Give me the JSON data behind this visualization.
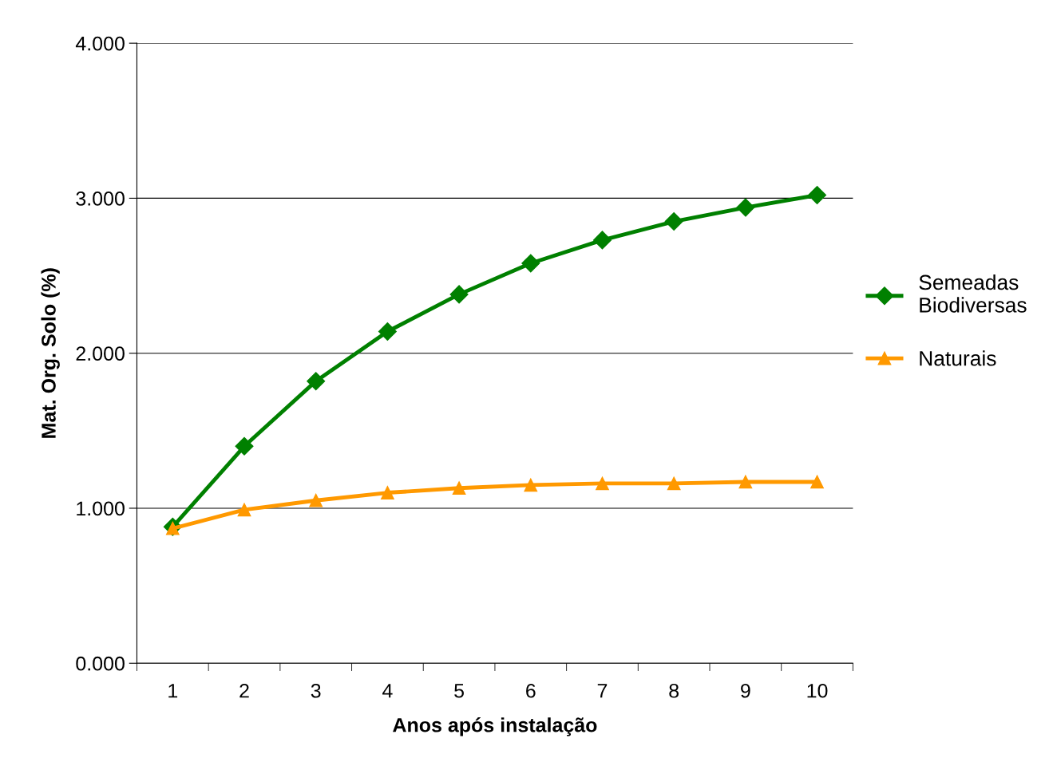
{
  "chart_data": {
    "type": "line",
    "xlabel": "Anos após instalação",
    "ylabel": "Mat. Org. Solo (%)",
    "categories": [
      "1",
      "2",
      "3",
      "4",
      "5",
      "6",
      "7",
      "8",
      "9",
      "10"
    ],
    "series": [
      {
        "name": "Semeadas\nBiodiversas",
        "color": "#008000",
        "marker": "diamond",
        "values": [
          0.88,
          1.4,
          1.82,
          2.14,
          2.38,
          2.58,
          2.73,
          2.85,
          2.94,
          3.02
        ]
      },
      {
        "name": "Naturais",
        "color": "#ff9900",
        "marker": "triangle",
        "values": [
          0.87,
          0.99,
          1.05,
          1.1,
          1.13,
          1.15,
          1.16,
          1.16,
          1.17,
          1.17
        ]
      }
    ],
    "ylim": [
      0,
      4
    ],
    "yticks": [
      {
        "value": 0,
        "label": "0.000"
      },
      {
        "value": 1,
        "label": "1.000"
      },
      {
        "value": 2,
        "label": "2.000"
      },
      {
        "value": 3,
        "label": "3.000"
      },
      {
        "value": 4,
        "label": "4.000"
      }
    ],
    "grid": "y",
    "legend": "right",
    "line_style": "solid"
  }
}
